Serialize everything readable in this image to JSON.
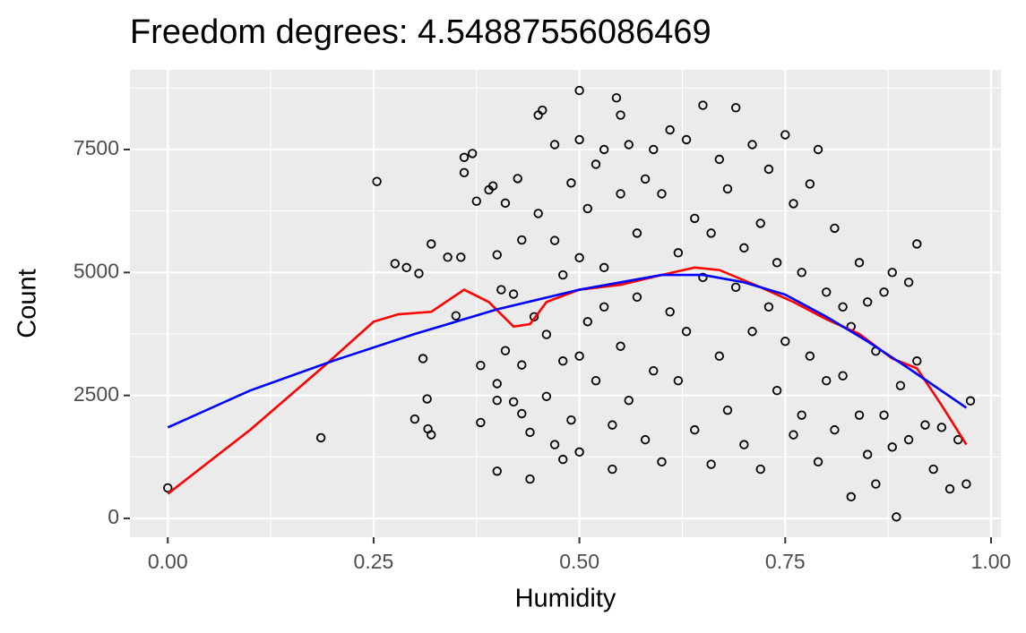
{
  "chart_data": {
    "type": "scatter",
    "title": "Freedom degrees: 4.54887556086469",
    "x_label": "Humidity",
    "y_label": "Count",
    "xlim": [
      -0.046,
      1.012
    ],
    "ylim": [
      -382,
      9120
    ],
    "xticks": [
      {
        "value": 0,
        "label": "0.00"
      },
      {
        "value": 0.25,
        "label": "0.25"
      },
      {
        "value": 0.5,
        "label": "0.50"
      },
      {
        "value": 0.75,
        "label": "0.75"
      },
      {
        "value": 1,
        "label": "1.00"
      }
    ],
    "yticks": [
      0,
      2500,
      5000,
      7500
    ],
    "minor_xticks": [
      0.125,
      0.375,
      0.625,
      0.875
    ],
    "minor_yticks": [
      1250,
      3750,
      6250,
      8750
    ],
    "grid": true,
    "points": {
      "color": "#000000",
      "x": [
        0,
        0.186,
        0.254,
        0.276,
        0.29,
        0.305,
        0.31,
        0.315,
        0.3,
        0.316,
        0.32,
        0.32,
        0.34,
        0.35,
        0.356,
        0.36,
        0.36,
        0.37,
        0.375,
        0.38,
        0.38,
        0.39,
        0.395,
        0.4,
        0.4,
        0.4,
        0.4,
        0.405,
        0.41,
        0.41,
        0.42,
        0.42,
        0.425,
        0.43,
        0.43,
        0.43,
        0.44,
        0.44,
        0.445,
        0.45,
        0.45,
        0.455,
        0.46,
        0.46,
        0.47,
        0.47,
        0.47,
        0.48,
        0.48,
        0.48,
        0.49,
        0.49,
        0.5,
        0.5,
        0.5,
        0.5,
        0.5,
        0.51,
        0.51,
        0.52,
        0.52,
        0.53,
        0.53,
        0.53,
        0.54,
        0.54,
        0.545,
        0.55,
        0.55,
        0.55,
        0.56,
        0.56,
        0.57,
        0.57,
        0.58,
        0.58,
        0.59,
        0.59,
        0.6,
        0.6,
        0.61,
        0.61,
        0.62,
        0.62,
        0.63,
        0.63,
        0.64,
        0.64,
        0.65,
        0.65,
        0.66,
        0.66,
        0.67,
        0.67,
        0.68,
        0.68,
        0.69,
        0.69,
        0.7,
        0.7,
        0.71,
        0.71,
        0.72,
        0.72,
        0.73,
        0.73,
        0.74,
        0.74,
        0.75,
        0.75,
        0.76,
        0.76,
        0.77,
        0.77,
        0.78,
        0.78,
        0.79,
        0.79,
        0.8,
        0.8,
        0.81,
        0.81,
        0.82,
        0.82,
        0.83,
        0.83,
        0.84,
        0.84,
        0.85,
        0.85,
        0.86,
        0.86,
        0.87,
        0.87,
        0.88,
        0.88,
        0.885,
        0.89,
        0.9,
        0.9,
        0.91,
        0.91,
        0.92,
        0.93,
        0.94,
        0.95,
        0.96,
        0.97,
        0.975
      ],
      "y": [
        620,
        1640,
        6850,
        5180,
        5100,
        4980,
        3250,
        2430,
        2020,
        1820,
        1700,
        5580,
        5310,
        4120,
        5310,
        7340,
        7030,
        7420,
        6450,
        3110,
        1950,
        6680,
        6760,
        5360,
        2740,
        2400,
        960,
        4650,
        3410,
        6410,
        4560,
        2370,
        6910,
        5660,
        3120,
        2130,
        800,
        1750,
        4100,
        6200,
        8200,
        8300,
        3740,
        2480,
        7600,
        5650,
        1500,
        4950,
        3200,
        1200,
        6820,
        2000,
        8700,
        7700,
        5300,
        3300,
        1350,
        6300,
        4000,
        7200,
        2800,
        7500,
        5100,
        4300,
        1000,
        1900,
        8550,
        8200,
        6600,
        3500,
        7600,
        2400,
        5800,
        4500,
        6900,
        1600,
        7500,
        3000,
        6600,
        1150,
        7900,
        4200,
        5400,
        2800,
        7700,
        3800,
        6100,
        1800,
        8400,
        4900,
        5800,
        1100,
        7300,
        3300,
        6700,
        2200,
        8350,
        4700,
        5500,
        1500,
        7600,
        3800,
        6000,
        1000,
        7100,
        4300,
        5200,
        2600,
        7800,
        3600,
        6400,
        1700,
        5000,
        2100,
        6800,
        3300,
        1150,
        7500,
        4600,
        2800,
        5900,
        1800,
        4300,
        2900,
        3900,
        440,
        5200,
        2100,
        4400,
        1300,
        3400,
        700,
        4600,
        2100,
        1450,
        5000,
        30,
        2700,
        4800,
        1600,
        3200,
        5580,
        1900,
        1000,
        1850,
        600,
        1600,
        700,
        2390
      ]
    },
    "lines": [
      {
        "color": "#ff0000",
        "x": [
          0,
          0.1,
          0.19,
          0.25,
          0.28,
          0.32,
          0.36,
          0.39,
          0.42,
          0.44,
          0.46,
          0.5,
          0.55,
          0.6,
          0.64,
          0.67,
          0.72,
          0.76,
          0.8,
          0.84,
          0.88,
          0.91,
          0.94,
          0.97
        ],
        "values": [
          500,
          1800,
          3100,
          4000,
          4150,
          4200,
          4650,
          4400,
          3900,
          3950,
          4400,
          4650,
          4750,
          4950,
          5100,
          5050,
          4700,
          4400,
          4050,
          3750,
          3250,
          3050,
          2300,
          1500
        ]
      },
      {
        "color": "#0000ff",
        "x": [
          0,
          0.1,
          0.2,
          0.3,
          0.4,
          0.5,
          0.6,
          0.65,
          0.7,
          0.75,
          0.8,
          0.85,
          0.9,
          0.97
        ],
        "values": [
          1850,
          2600,
          3200,
          3750,
          4250,
          4650,
          4950,
          4950,
          4800,
          4550,
          4100,
          3600,
          3050,
          2250
        ]
      }
    ]
  }
}
